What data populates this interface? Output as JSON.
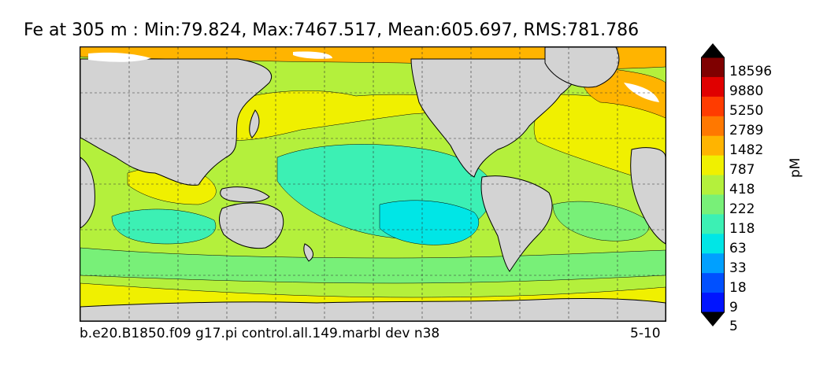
{
  "title": "Fe at 305 m : Min:79.824, Max:7467.517, Mean:605.697, RMS:781.786",
  "footer": {
    "case_name": "b.e20.B1850.f09 g17.pi control.all.149.marbl dev n38",
    "period": "5-10"
  },
  "colorbar": {
    "unit": "pM",
    "tick_labels": [
      "18596",
      "9880",
      "5250",
      "2789",
      "1482",
      "787",
      "418",
      "222",
      "118",
      "63",
      "33",
      "18",
      "9",
      "5"
    ],
    "level_colors_top_to_bottom": [
      "#7f0000",
      "#e00000",
      "#ff3c00",
      "#ff7800",
      "#ffb400",
      "#f0f000",
      "#b4f03c",
      "#78f078",
      "#3cf0b4",
      "#00e6e6",
      "#00a0ff",
      "#0050ff",
      "#0014ff",
      "#0000c8",
      "#000080"
    ],
    "extend": "both"
  },
  "map": {
    "land_color": "#d3d3d3",
    "missing_color": "#ffffff",
    "grid": true
  }
}
